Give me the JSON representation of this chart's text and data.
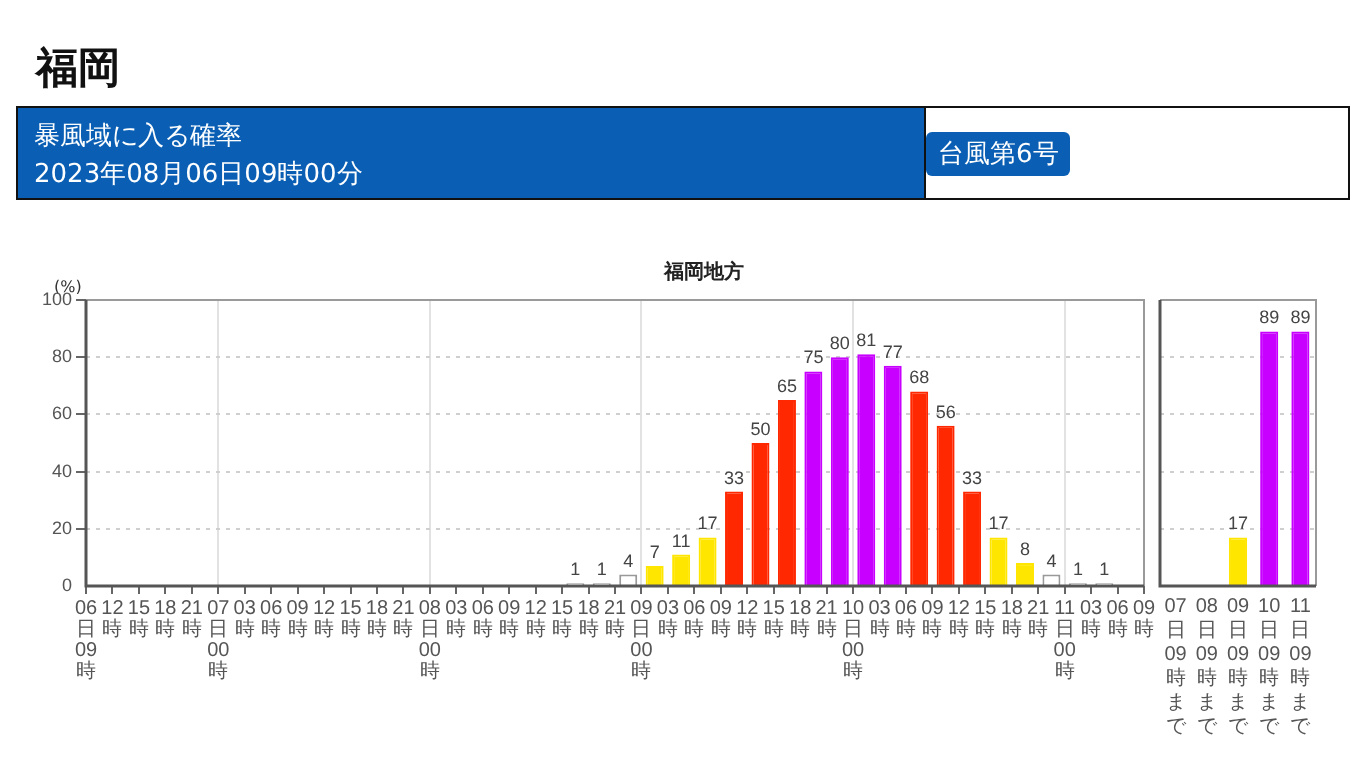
{
  "chart_data": [
    {
      "type": "bar",
      "title": "福岡地方",
      "ylabel": "(%)",
      "annotations": [
        "福岡",
        "暴風域に入る確率",
        "2023年08月06日09時00分",
        "台風第6号"
      ],
      "x": [
        "2023-08-08T16:30",
        "2023-08-08T19:30",
        "2023-08-08T22:30",
        "2023-08-09T01:30",
        "2023-08-09T04:30",
        "2023-08-09T07:30",
        "2023-08-09T10:30",
        "2023-08-09T13:30",
        "2023-08-09T16:30",
        "2023-08-09T19:30",
        "2023-08-09T22:30",
        "2023-08-10T01:30",
        "2023-08-10T04:30",
        "2023-08-10T07:30",
        "2023-08-10T10:30",
        "2023-08-10T13:30",
        "2023-08-10T16:30",
        "2023-08-10T19:30",
        "2023-08-10T22:30",
        "2023-08-11T01:30",
        "2023-08-11T04:30"
      ],
      "values": [
        1,
        1,
        4,
        7,
        11,
        17,
        33,
        50,
        65,
        75,
        80,
        81,
        77,
        68,
        56,
        33,
        17,
        8,
        4,
        1,
        1
      ],
      "colors": [
        "#ffffff",
        "#ffffff",
        "#ffffff",
        "#ffe600",
        "#ffe600",
        "#ffe600",
        "#ff2800",
        "#ff2800",
        "#ff2800",
        "#c800ff",
        "#c800ff",
        "#c800ff",
        "#c800ff",
        "#ff2800",
        "#ff2800",
        "#ff2800",
        "#ffe600",
        "#ffe600",
        "#ffffff",
        "#ffffff",
        "#ffffff"
      ],
      "xlim": [
        "2023-08-06T09:00",
        "2023-08-11T09:00"
      ],
      "xticks": [
        {
          "value": "2023-08-06T09:00",
          "label": "06日09時"
        },
        {
          "value": "2023-08-06T12:00",
          "label": "12時"
        },
        {
          "value": "2023-08-06T15:00",
          "label": "15時"
        },
        {
          "value": "2023-08-06T18:00",
          "label": "18時"
        },
        {
          "value": "2023-08-06T21:00",
          "label": "21時"
        },
        {
          "value": "2023-08-07T00:00",
          "label": "07日00時"
        },
        {
          "value": "2023-08-07T03:00",
          "label": "03時"
        },
        {
          "value": "2023-08-07T06:00",
          "label": "06時"
        },
        {
          "value": "2023-08-07T09:00",
          "label": "09時"
        },
        {
          "value": "2023-08-07T12:00",
          "label": "12時"
        },
        {
          "value": "2023-08-07T15:00",
          "label": "15時"
        },
        {
          "value": "2023-08-07T18:00",
          "label": "18時"
        },
        {
          "value": "2023-08-07T21:00",
          "label": "21時"
        },
        {
          "value": "2023-08-08T00:00",
          "label": "08日00時"
        },
        {
          "value": "2023-08-08T03:00",
          "label": "03時"
        },
        {
          "value": "2023-08-08T06:00",
          "label": "06時"
        },
        {
          "value": "2023-08-08T09:00",
          "label": "09時"
        },
        {
          "value": "2023-08-08T12:00",
          "label": "12時"
        },
        {
          "value": "2023-08-08T15:00",
          "label": "15時"
        },
        {
          "value": "2023-08-08T18:00",
          "label": "18時"
        },
        {
          "value": "2023-08-08T21:00",
          "label": "21時"
        },
        {
          "value": "2023-08-09T00:00",
          "label": "09日00時"
        },
        {
          "value": "2023-08-09T03:00",
          "label": "03時"
        },
        {
          "value": "2023-08-09T06:00",
          "label": "06時"
        },
        {
          "value": "2023-08-09T09:00",
          "label": "09時"
        },
        {
          "value": "2023-08-09T12:00",
          "label": "12時"
        },
        {
          "value": "2023-08-09T15:00",
          "label": "15時"
        },
        {
          "value": "2023-08-09T18:00",
          "label": "18時"
        },
        {
          "value": "2023-08-09T21:00",
          "label": "21時"
        },
        {
          "value": "2023-08-10T00:00",
          "label": "10日00時"
        },
        {
          "value": "2023-08-10T03:00",
          "label": "03時"
        },
        {
          "value": "2023-08-10T06:00",
          "label": "06時"
        },
        {
          "value": "2023-08-10T09:00",
          "label": "09時"
        },
        {
          "value": "2023-08-10T12:00",
          "label": "12時"
        },
        {
          "value": "2023-08-10T15:00",
          "label": "15時"
        },
        {
          "value": "2023-08-10T18:00",
          "label": "18時"
        },
        {
          "value": "2023-08-10T21:00",
          "label": "21時"
        },
        {
          "value": "2023-08-11T00:00",
          "label": "11日00時"
        },
        {
          "value": "2023-08-11T03:00",
          "label": "03時"
        },
        {
          "value": "2023-08-11T06:00",
          "label": "06時"
        },
        {
          "value": "2023-08-11T09:00",
          "label": "09時"
        }
      ],
      "ylim": [
        0,
        100
      ],
      "yticks": [
        0,
        20,
        40,
        60,
        80,
        100
      ],
      "grid": true,
      "data_labels": true
    },
    {
      "type": "bar",
      "categories": [
        "07日09時まで",
        "08日09時まで",
        "09日09時まで",
        "10日09時まで",
        "11日09時まで"
      ],
      "values": [
        null,
        null,
        17,
        89,
        89
      ],
      "colors": [
        null,
        null,
        "#ffe600",
        "#c800ff",
        "#c800ff"
      ],
      "ylim": [
        0,
        100
      ],
      "yticks": [
        0,
        20,
        40,
        60,
        80,
        100
      ],
      "grid": "y",
      "tick_labels": "x",
      "data_labels": true
    }
  ]
}
